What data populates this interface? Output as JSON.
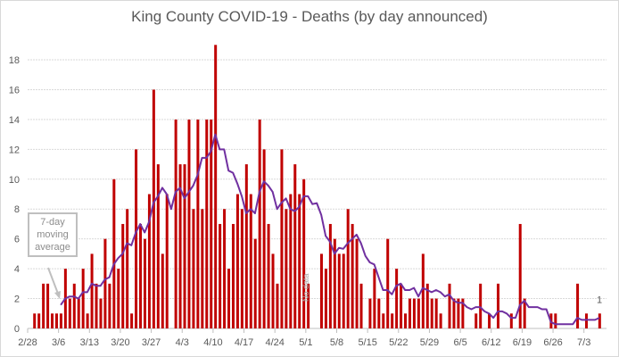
{
  "chart_data": {
    "type": "bar",
    "title": "King County COVID-19 - Deaths (by day announced)",
    "xlabel": "",
    "ylabel": "",
    "ylim": [
      0,
      19.5
    ],
    "yticks": [
      0,
      2,
      4,
      6,
      8,
      10,
      12,
      14,
      16,
      18
    ],
    "grid": true,
    "x_tick_labels": [
      "2/28",
      "3/6",
      "3/13",
      "3/20",
      "3/27",
      "4/3",
      "4/10",
      "4/17",
      "4/24",
      "5/1",
      "5/8",
      "5/15",
      "5/22",
      "5/29",
      "6/5",
      "6/12",
      "6/19",
      "6/26",
      "7/3"
    ],
    "x": [
      "2/28",
      "2/29",
      "3/1",
      "3/2",
      "3/3",
      "3/4",
      "3/5",
      "3/6",
      "3/7",
      "3/8",
      "3/9",
      "3/10",
      "3/11",
      "3/12",
      "3/13",
      "3/14",
      "3/15",
      "3/16",
      "3/17",
      "3/18",
      "3/19",
      "3/20",
      "3/21",
      "3/22",
      "3/23",
      "3/24",
      "3/25",
      "3/26",
      "3/27",
      "3/28",
      "3/29",
      "3/30",
      "3/31",
      "4/1",
      "4/2",
      "4/3",
      "4/4",
      "4/5",
      "4/6",
      "4/7",
      "4/8",
      "4/9",
      "4/10",
      "4/11",
      "4/12",
      "4/13",
      "4/14",
      "4/15",
      "4/16",
      "4/17",
      "4/18",
      "4/19",
      "4/20",
      "4/21",
      "4/22",
      "4/23",
      "4/24",
      "4/25",
      "4/26",
      "4/27",
      "4/28",
      "4/29",
      "4/30",
      "5/1",
      "5/2",
      "5/3",
      "5/4",
      "5/5",
      "5/6",
      "5/7",
      "5/8",
      "5/9",
      "5/10",
      "5/11",
      "5/12",
      "5/13",
      "5/14",
      "5/15",
      "5/16",
      "5/17",
      "5/18",
      "5/19",
      "5/20",
      "5/21",
      "5/22",
      "5/23",
      "5/24",
      "5/25",
      "5/26",
      "5/27",
      "5/28",
      "5/29",
      "5/30",
      "5/31",
      "6/1",
      "6/2",
      "6/3",
      "6/4",
      "6/5",
      "6/6",
      "6/7",
      "6/8",
      "6/9",
      "6/10",
      "6/11",
      "6/12",
      "6/13",
      "6/14",
      "6/15",
      "6/16",
      "6/17",
      "6/18",
      "6/19",
      "6/20",
      "6/21",
      "6/22",
      "6/23",
      "6/24",
      "6/25",
      "6/26",
      "6/27",
      "6/28",
      "6/29",
      "6/30",
      "7/1",
      "7/2",
      "7/3",
      "7/4",
      "7/5",
      "7/6"
    ],
    "series": [
      {
        "name": "Deaths",
        "kind": "bar",
        "color": "#C00000",
        "values": [
          0,
          1,
          1,
          3,
          3,
          1,
          1,
          1,
          4,
          2,
          3,
          2,
          4,
          1,
          5,
          3,
          2,
          6,
          3,
          10,
          4,
          7,
          8,
          1,
          12,
          7,
          6,
          9,
          16,
          11,
          5,
          9,
          0,
          14,
          11,
          11,
          14,
          8,
          14,
          8,
          14,
          14,
          19,
          7,
          8,
          4,
          7,
          9,
          8,
          11,
          9,
          6,
          14,
          12,
          7,
          5,
          3,
          12,
          8,
          9,
          11,
          9,
          10,
          3,
          null,
          null,
          5,
          4,
          7,
          6,
          5,
          5,
          8,
          7,
          6,
          3,
          0,
          2,
          4,
          2,
          1,
          6,
          1,
          4,
          3,
          1,
          2,
          2,
          2,
          5,
          3,
          2,
          2,
          1,
          0,
          3,
          2,
          2,
          2,
          0,
          0,
          1,
          3,
          0,
          1,
          0,
          3,
          0,
          0,
          1,
          0,
          7,
          2,
          0,
          0,
          0,
          0,
          0,
          1,
          1,
          0,
          0,
          0,
          0,
          3,
          0,
          1,
          0,
          0,
          1
        ]
      },
      {
        "name": "7-day moving average",
        "kind": "line",
        "color": "#7030A0",
        "window": 7,
        "start": "3/6"
      }
    ],
    "annotations": {
      "moving_average_lines": [
        "7-day",
        "moving",
        "average"
      ],
      "no_data": "No data",
      "no_data_dates": [
        "5/2",
        "5/3"
      ],
      "last_value_label": "1"
    }
  }
}
